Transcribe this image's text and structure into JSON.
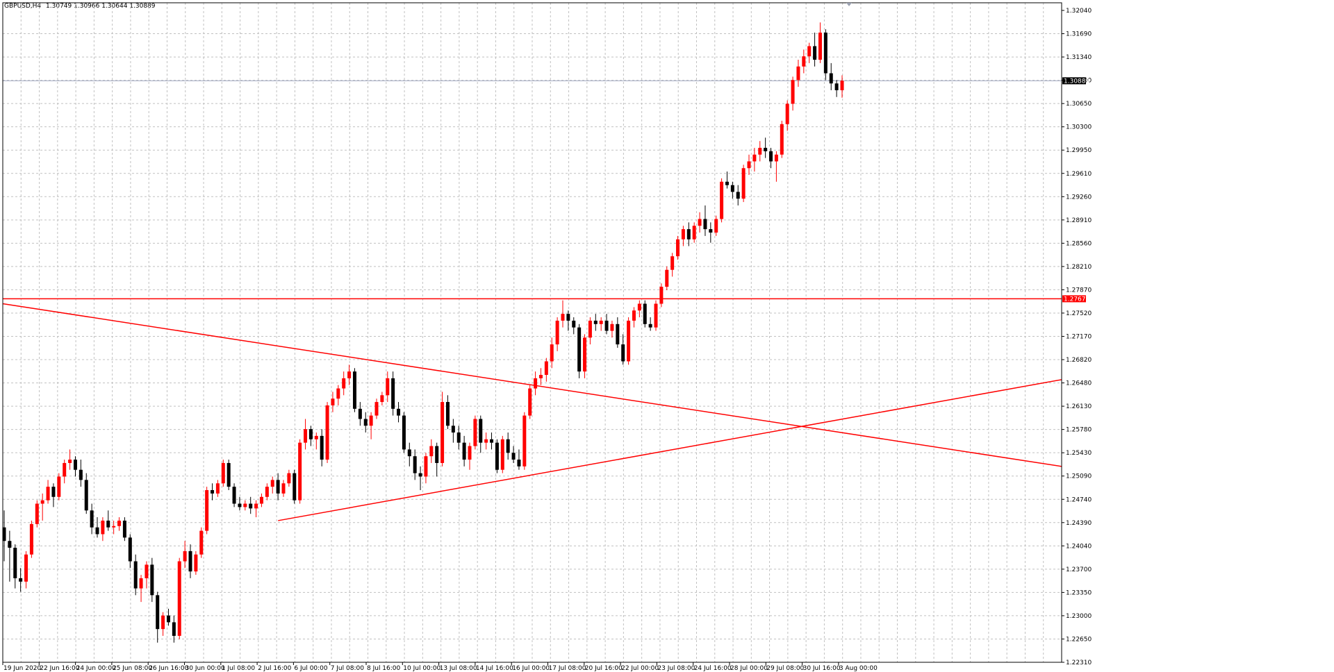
{
  "header": {
    "symbol": "GBPUSD,H4",
    "ohlc": "1.30749 1.30966 1.30644 1.30889"
  },
  "colors": {
    "background": "#ffffff",
    "grid": "#c0c0c0",
    "bull_candle": "#ff0000",
    "bear_candle": "#000000",
    "lines": "#ff0000",
    "bid_line": "#a0a8c0"
  },
  "chart_data": {
    "type": "candlestick",
    "symbol": "GBPUSD",
    "timeframe": "H4",
    "ylim": [
      1.2231,
      1.3204
    ],
    "y_ticks": [
      "1.32040",
      "1.31690",
      "1.31340",
      "1.31000",
      "1.30650",
      "1.30300",
      "1.29950",
      "1.29610",
      "1.29260",
      "1.28910",
      "1.28560",
      "1.28210",
      "1.27870",
      "1.27520",
      "1.27170",
      "1.26820",
      "1.26480",
      "1.26130",
      "1.25780",
      "1.25430",
      "1.25090",
      "1.24740",
      "1.24390",
      "1.24040",
      "1.23700",
      "1.23350",
      "1.23000",
      "1.22650",
      "1.22310"
    ],
    "x_ticks": [
      "19 Jun 2020",
      "22 Jun 16:00",
      "24 Jun 00:00",
      "25 Jun 08:00",
      "26 Jun 16:00",
      "30 Jun 00:00",
      "1 Jul 08:00",
      "2 Jul 16:00",
      "6 Jul 00:00",
      "7 Jul 08:00",
      "8 Jul 16:00",
      "10 Jul 00:00",
      "13 Jul 08:00",
      "14 Jul 16:00",
      "16 Jul 00:00",
      "17 Jul 08:00",
      "20 Jul 16:00",
      "22 Jul 00:00",
      "23 Jul 08:00",
      "24 Jul 16:00",
      "28 Jul 00:00",
      "29 Jul 08:00",
      "30 Jul 16:00",
      "3 Aug 00:00"
    ],
    "candles_ohlc": [
      [
        1.243,
        1.2455,
        1.238,
        1.241
      ],
      [
        1.241,
        1.2425,
        1.235,
        1.24
      ],
      [
        1.24,
        1.2405,
        1.234,
        1.2355
      ],
      [
        1.2355,
        1.237,
        1.2335,
        1.235
      ],
      [
        1.235,
        1.2395,
        1.234,
        1.239
      ],
      [
        1.239,
        1.244,
        1.2385,
        1.2435
      ],
      [
        1.2435,
        1.247,
        1.243,
        1.2465
      ],
      [
        1.2465,
        1.248,
        1.244,
        1.247
      ],
      [
        1.247,
        1.25,
        1.2465,
        1.249
      ],
      [
        1.249,
        1.2495,
        1.246,
        1.2475
      ],
      [
        1.2475,
        1.251,
        1.247,
        1.2505
      ],
      [
        1.2505,
        1.253,
        1.2495,
        1.2525
      ],
      [
        1.2525,
        1.2545,
        1.2515,
        1.253
      ],
      [
        1.253,
        1.2535,
        1.2505,
        1.2515
      ],
      [
        1.2515,
        1.253,
        1.249,
        1.25
      ],
      [
        1.25,
        1.251,
        1.245,
        1.2455
      ],
      [
        1.2455,
        1.2465,
        1.242,
        1.243
      ],
      [
        1.243,
        1.2445,
        1.2415,
        1.242
      ],
      [
        1.242,
        1.2445,
        1.241,
        1.244
      ],
      [
        1.244,
        1.2455,
        1.2425,
        1.243
      ],
      [
        1.243,
        1.244,
        1.242,
        1.2432
      ],
      [
        1.2432,
        1.2445,
        1.2425,
        1.244
      ],
      [
        1.244,
        1.2445,
        1.241,
        1.2415
      ],
      [
        1.2415,
        1.242,
        1.237,
        1.238
      ],
      [
        1.238,
        1.239,
        1.233,
        1.234
      ],
      [
        1.234,
        1.236,
        1.232,
        1.2355
      ],
      [
        1.2355,
        1.238,
        1.234,
        1.2375
      ],
      [
        1.2375,
        1.2385,
        1.232,
        1.233
      ],
      [
        1.233,
        1.2335,
        1.226,
        1.228
      ],
      [
        1.228,
        1.2305,
        1.227,
        1.23
      ],
      [
        1.23,
        1.231,
        1.2285,
        1.229
      ],
      [
        1.229,
        1.23,
        1.226,
        1.227
      ],
      [
        1.227,
        1.2385,
        1.2265,
        1.238
      ],
      [
        1.238,
        1.241,
        1.237,
        1.2395
      ],
      [
        1.2395,
        1.2405,
        1.2355,
        1.2365
      ],
      [
        1.2365,
        1.2395,
        1.236,
        1.239
      ],
      [
        1.239,
        1.243,
        1.2385,
        1.2425
      ],
      [
        1.2425,
        1.249,
        1.242,
        1.2485
      ],
      [
        1.2485,
        1.2495,
        1.247,
        1.248
      ],
      [
        1.248,
        1.25,
        1.2475,
        1.2495
      ],
      [
        1.2495,
        1.253,
        1.249,
        1.2525
      ],
      [
        1.2525,
        1.253,
        1.2485,
        1.249
      ],
      [
        1.249,
        1.2495,
        1.246,
        1.2465
      ],
      [
        1.2465,
        1.2475,
        1.2455,
        1.246
      ],
      [
        1.246,
        1.247,
        1.2455,
        1.2465
      ],
      [
        1.2465,
        1.2475,
        1.245,
        1.2458
      ],
      [
        1.2458,
        1.247,
        1.2445,
        1.2465
      ],
      [
        1.2465,
        1.248,
        1.246,
        1.2475
      ],
      [
        1.2475,
        1.2495,
        1.247,
        1.249
      ],
      [
        1.249,
        1.2505,
        1.248,
        1.25
      ],
      [
        1.25,
        1.251,
        1.247,
        1.248
      ],
      [
        1.248,
        1.25,
        1.2475,
        1.2495
      ],
      [
        1.2495,
        1.2515,
        1.249,
        1.251
      ],
      [
        1.251,
        1.2515,
        1.2465,
        1.247
      ],
      [
        1.247,
        1.256,
        1.2465,
        1.2555
      ],
      [
        1.2555,
        1.259,
        1.2545,
        1.2575
      ],
      [
        1.2575,
        1.258,
        1.255,
        1.256
      ],
      [
        1.256,
        1.257,
        1.2545,
        1.2565
      ],
      [
        1.2565,
        1.2575,
        1.252,
        1.253
      ],
      [
        1.253,
        1.2615,
        1.2525,
        1.261
      ],
      [
        1.261,
        1.263,
        1.26,
        1.262
      ],
      [
        1.262,
        1.264,
        1.261,
        1.2635
      ],
      [
        1.2635,
        1.266,
        1.2625,
        1.265
      ],
      [
        1.265,
        1.267,
        1.264,
        1.266
      ],
      [
        1.266,
        1.2665,
        1.26,
        1.2605
      ],
      [
        1.2605,
        1.2615,
        1.258,
        1.259
      ],
      [
        1.259,
        1.26,
        1.257,
        1.258
      ],
      [
        1.258,
        1.26,
        1.256,
        1.2595
      ],
      [
        1.2595,
        1.262,
        1.259,
        1.2615
      ],
      [
        1.2615,
        1.263,
        1.261,
        1.2625
      ],
      [
        1.2625,
        1.266,
        1.2615,
        1.265
      ],
      [
        1.265,
        1.266,
        1.2595,
        1.2605
      ],
      [
        1.2605,
        1.2615,
        1.2585,
        1.2595
      ],
      [
        1.2595,
        1.26,
        1.254,
        1.2545
      ],
      [
        1.2545,
        1.2555,
        1.252,
        1.2535
      ],
      [
        1.2535,
        1.2545,
        1.25,
        1.251
      ],
      [
        1.251,
        1.252,
        1.2485,
        1.2505
      ],
      [
        1.2505,
        1.254,
        1.2495,
        1.2535
      ],
      [
        1.2535,
        1.256,
        1.2525,
        1.255
      ],
      [
        1.255,
        1.2555,
        1.2505,
        1.2525
      ],
      [
        1.2525,
        1.263,
        1.252,
        1.2615
      ],
      [
        1.2615,
        1.2625,
        1.2575,
        1.258
      ],
      [
        1.258,
        1.259,
        1.2555,
        1.257
      ],
      [
        1.257,
        1.258,
        1.2545,
        1.2555
      ],
      [
        1.2555,
        1.2565,
        1.252,
        1.253
      ],
      [
        1.253,
        1.2555,
        1.2515,
        1.255
      ],
      [
        1.255,
        1.2595,
        1.2545,
        1.259
      ],
      [
        1.259,
        1.2595,
        1.254,
        1.2555
      ],
      [
        1.2555,
        1.257,
        1.2545,
        1.256
      ],
      [
        1.256,
        1.257,
        1.2545,
        1.2555
      ],
      [
        1.2555,
        1.256,
        1.251,
        1.2515
      ],
      [
        1.2515,
        1.2565,
        1.251,
        1.256
      ],
      [
        1.256,
        1.257,
        1.253,
        1.254
      ],
      [
        1.254,
        1.255,
        1.2525,
        1.253
      ],
      [
        1.253,
        1.2545,
        1.2515,
        1.252
      ],
      [
        1.252,
        1.26,
        1.2515,
        1.2595
      ],
      [
        1.2595,
        1.264,
        1.259,
        1.2635
      ],
      [
        1.2635,
        1.266,
        1.2625,
        1.265
      ],
      [
        1.265,
        1.2665,
        1.264,
        1.2655
      ],
      [
        1.2655,
        1.268,
        1.2645,
        1.2675
      ],
      [
        1.2675,
        1.271,
        1.2665,
        1.27
      ],
      [
        1.27,
        1.274,
        1.269,
        1.2735
      ],
      [
        1.2735,
        1.2765,
        1.2725,
        1.2745
      ],
      [
        1.2745,
        1.275,
        1.272,
        1.2735
      ],
      [
        1.2735,
        1.274,
        1.2715,
        1.2725
      ],
      [
        1.2725,
        1.273,
        1.265,
        1.266
      ],
      [
        1.266,
        1.2715,
        1.265,
        1.271
      ],
      [
        1.271,
        1.274,
        1.27,
        1.2735
      ],
      [
        1.2735,
        1.2745,
        1.272,
        1.273
      ],
      [
        1.273,
        1.274,
        1.272,
        1.2735
      ],
      [
        1.2735,
        1.2745,
        1.2715,
        1.272
      ],
      [
        1.272,
        1.2735,
        1.271,
        1.273
      ],
      [
        1.273,
        1.274,
        1.2695,
        1.27
      ],
      [
        1.27,
        1.2715,
        1.267,
        1.2675
      ],
      [
        1.2675,
        1.274,
        1.267,
        1.2735
      ],
      [
        1.2735,
        1.2755,
        1.2725,
        1.275
      ],
      [
        1.275,
        1.2765,
        1.274,
        1.276
      ],
      [
        1.276,
        1.2765,
        1.2725,
        1.273
      ],
      [
        1.273,
        1.274,
        1.272,
        1.2725
      ],
      [
        1.2725,
        1.2765,
        1.272,
        1.276
      ],
      [
        1.276,
        1.279,
        1.2755,
        1.2785
      ],
      [
        1.2785,
        1.2815,
        1.278,
        1.281
      ],
      [
        1.281,
        1.2835,
        1.28,
        1.283
      ],
      [
        1.283,
        1.286,
        1.2825,
        1.2855
      ],
      [
        1.2855,
        1.2875,
        1.2845,
        1.287
      ],
      [
        1.287,
        1.288,
        1.2845,
        1.2855
      ],
      [
        1.2855,
        1.288,
        1.285,
        1.2875
      ],
      [
        1.2875,
        1.2895,
        1.2865,
        1.2885
      ],
      [
        1.2885,
        1.2905,
        1.286,
        1.287
      ],
      [
        1.287,
        1.288,
        1.285,
        1.2865
      ],
      [
        1.2865,
        1.289,
        1.286,
        1.2885
      ],
      [
        1.2885,
        1.2945,
        1.288,
        1.294
      ],
      [
        1.294,
        1.2955,
        1.293,
        1.2935
      ],
      [
        1.2935,
        1.294,
        1.2915,
        1.2925
      ],
      [
        1.2925,
        1.2935,
        1.2905,
        1.2915
      ],
      [
        1.2915,
        1.2965,
        1.291,
        1.296
      ],
      [
        1.296,
        1.298,
        1.295,
        1.297
      ],
      [
        1.297,
        1.299,
        1.2955,
        1.298
      ],
      [
        1.298,
        1.3,
        1.297,
        1.299
      ],
      [
        1.299,
        1.3005,
        1.2975,
        1.2985
      ],
      [
        1.2985,
        1.299,
        1.296,
        1.297
      ],
      [
        1.297,
        1.2985,
        1.294,
        1.298
      ],
      [
        1.298,
        1.303,
        1.2975,
        1.3025
      ],
      [
        1.3025,
        1.306,
        1.3015,
        1.3055
      ],
      [
        1.3055,
        1.3095,
        1.3045,
        1.309
      ],
      [
        1.309,
        1.312,
        1.308,
        1.311
      ],
      [
        1.311,
        1.3135,
        1.31,
        1.3125
      ],
      [
        1.3125,
        1.3145,
        1.3115,
        1.314
      ],
      [
        1.314,
        1.316,
        1.311,
        1.312
      ],
      [
        1.312,
        1.3175,
        1.3115,
        1.316
      ],
      [
        1.316,
        1.3165,
        1.309,
        1.31
      ],
      [
        1.31,
        1.3115,
        1.3075,
        1.3085
      ],
      [
        1.3085,
        1.309,
        1.3065,
        1.3075
      ],
      [
        1.3075,
        1.3097,
        1.3064,
        1.3089
      ]
    ],
    "horizontal_lines": [
      {
        "price": 1.27673,
        "label": "1.27673"
      }
    ],
    "current_price": {
      "price": 1.30889,
      "label": "1.30889"
    },
    "trend_lines": [
      {
        "from": [
          0,
          1.276
        ],
        "to": [
          1.0,
          1.252
        ]
      },
      {
        "from": [
          0.26,
          1.244
        ],
        "to": [
          1.0,
          1.2648
        ]
      }
    ]
  }
}
